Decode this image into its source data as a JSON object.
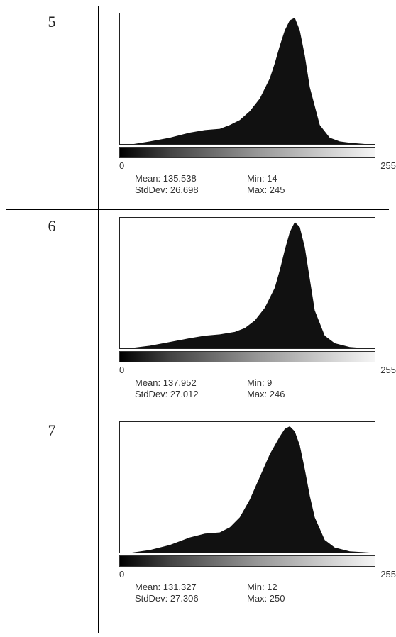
{
  "table": {
    "rows": [
      {
        "label": "5",
        "axis_min": "0",
        "axis_max": "255",
        "stats": {
          "mean": "Mean: 135.538",
          "min": "Min: 14",
          "stddev": "StdDev: 26.698",
          "max": "Max: 245"
        }
      },
      {
        "label": "6",
        "axis_min": "0",
        "axis_max": "255",
        "stats": {
          "mean": "Mean: 137.952",
          "min": "Min: 9",
          "stddev": "StdDev: 27.012",
          "max": "Max: 246"
        }
      },
      {
        "label": "7",
        "axis_min": "0",
        "axis_max": "255",
        "stats": {
          "mean": "Mean: 131.327",
          "min": "Min: 12",
          "stddev": "StdDev: 27.306",
          "max": "Max: 250"
        }
      }
    ]
  },
  "chart_data": [
    {
      "type": "area",
      "x_range": [
        0,
        255
      ],
      "x_ticks": [
        "0",
        "255"
      ],
      "grid": false,
      "fill_color": "#111111",
      "x": [
        14,
        30,
        50,
        70,
        85,
        100,
        110,
        120,
        130,
        140,
        150,
        155,
        160,
        165,
        170,
        175,
        180,
        185,
        190,
        200,
        210,
        220,
        230,
        245
      ],
      "y": [
        0,
        2,
        5,
        9,
        11,
        12,
        15,
        19,
        26,
        36,
        52,
        64,
        78,
        90,
        98,
        100,
        90,
        70,
        45,
        15,
        5,
        2,
        1,
        0
      ]
    },
    {
      "type": "area",
      "x_range": [
        0,
        255
      ],
      "x_ticks": [
        "0",
        "255"
      ],
      "grid": false,
      "fill_color": "#111111",
      "x": [
        9,
        30,
        50,
        70,
        85,
        100,
        115,
        125,
        135,
        145,
        155,
        160,
        165,
        170,
        175,
        180,
        185,
        190,
        195,
        205,
        215,
        230,
        246
      ],
      "y": [
        0,
        2,
        5,
        8,
        10,
        11,
        13,
        16,
        22,
        32,
        48,
        62,
        78,
        92,
        100,
        96,
        80,
        55,
        30,
        10,
        4,
        1,
        0
      ]
    },
    {
      "type": "area",
      "x_range": [
        0,
        255
      ],
      "x_ticks": [
        "0",
        "255"
      ],
      "grid": false,
      "fill_color": "#111111",
      "x": [
        12,
        30,
        50,
        70,
        85,
        100,
        110,
        120,
        130,
        140,
        150,
        160,
        165,
        170,
        175,
        180,
        185,
        190,
        195,
        205,
        215,
        230,
        250
      ],
      "y": [
        0,
        2,
        6,
        12,
        15,
        16,
        20,
        28,
        42,
        60,
        78,
        92,
        98,
        100,
        96,
        85,
        66,
        45,
        28,
        10,
        4,
        1,
        0
      ]
    }
  ]
}
